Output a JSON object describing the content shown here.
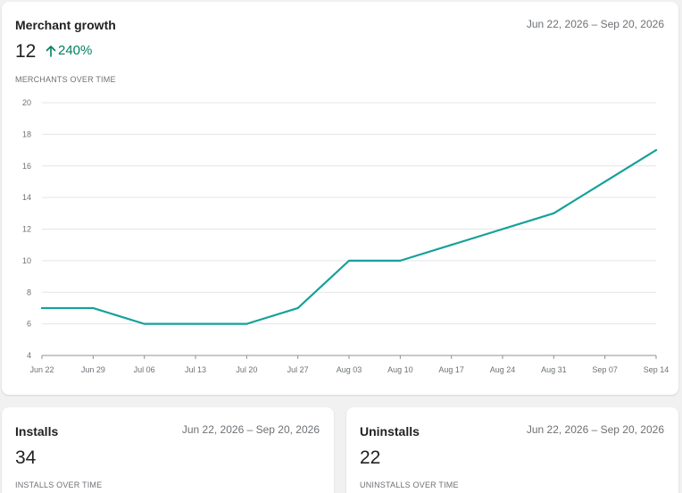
{
  "merchant_growth": {
    "title": "Merchant growth",
    "date_range": "Jun 22, 2026 – Sep 20, 2026",
    "value": "12",
    "change": "240%",
    "caption": "MERCHANTS OVER TIME"
  },
  "installs": {
    "title": "Installs",
    "date_range": "Jun 22, 2026 – Sep 20, 2026",
    "value": "34",
    "caption": "INSTALLS OVER TIME"
  },
  "uninstalls": {
    "title": "Uninstalls",
    "date_range": "Jun 22, 2026 – Sep 20, 2026",
    "value": "22",
    "caption": "UNINSTALLS OVER TIME"
  },
  "colors": {
    "line": "#16a19a",
    "positive": "#008060",
    "grid": "#e4e5e7",
    "axis": "#8c9196"
  },
  "chart_data": {
    "type": "line",
    "title": "",
    "xlabel": "",
    "ylabel": "",
    "categories": [
      "Jun 22",
      "Jun 29",
      "Jul 06",
      "Jul 13",
      "Jul 20",
      "Jul 27",
      "Aug 03",
      "Aug 10",
      "Aug 17",
      "Aug 24",
      "Aug 31",
      "Sep 07",
      "Sep 14"
    ],
    "series": [
      {
        "values": [
          7,
          7,
          6,
          6,
          6,
          7,
          10,
          10,
          11,
          12,
          13,
          15,
          17
        ]
      }
    ],
    "yticks": [
      4,
      6,
      8,
      10,
      12,
      14,
      16,
      18,
      20
    ],
    "ylim": [
      4,
      20
    ],
    "grid": true,
    "legend": "none"
  }
}
